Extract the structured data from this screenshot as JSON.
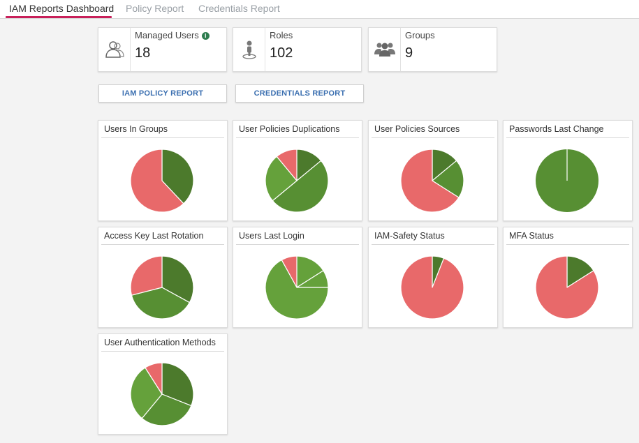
{
  "tabs": [
    {
      "label": "IAM Reports Dashboard",
      "active": true
    },
    {
      "label": "Policy Report",
      "active": false
    },
    {
      "label": "Credentials Report",
      "active": false
    }
  ],
  "stats": [
    {
      "label": "Managed Users",
      "value": "18",
      "icon": "users-outline-icon",
      "info_icon": "i"
    },
    {
      "label": "Roles",
      "value": "102",
      "icon": "role-person-icon"
    },
    {
      "label": "Groups",
      "value": "9",
      "icon": "group-icon"
    }
  ],
  "buttons": {
    "iam_policy_report": "IAM POLICY REPORT",
    "credentials_report": "CREDENTIALS REPORT"
  },
  "colors": {
    "red": "#e8696a",
    "dark_green": "#4c7a2c",
    "mid_green": "#578f33",
    "light_green": "#65a13b",
    "accent": "#c8205a",
    "link": "#3b6fb0"
  },
  "chart_data": [
    {
      "type": "pie",
      "title": "Users In Groups",
      "slices": [
        {
          "value": 38,
          "color": "#4c7a2c"
        },
        {
          "value": 62,
          "color": "#e8696a"
        }
      ]
    },
    {
      "type": "pie",
      "title": "User Policies Duplications",
      "slices": [
        {
          "value": 14,
          "color": "#4c7a2c"
        },
        {
          "value": 50,
          "color": "#578f33"
        },
        {
          "value": 25,
          "color": "#65a13b"
        },
        {
          "value": 11,
          "color": "#e8696a"
        }
      ]
    },
    {
      "type": "pie",
      "title": "User Policies Sources",
      "slices": [
        {
          "value": 14,
          "color": "#4c7a2c"
        },
        {
          "value": 20,
          "color": "#578f33"
        },
        {
          "value": 66,
          "color": "#e8696a"
        }
      ]
    },
    {
      "type": "pie",
      "title": "Passwords Last Change",
      "slices": [
        {
          "value": 100,
          "color": "#578f33"
        }
      ]
    },
    {
      "type": "pie",
      "title": "Access Key Last Rotation",
      "slices": [
        {
          "value": 33,
          "color": "#4c7a2c"
        },
        {
          "value": 38,
          "color": "#578f33"
        },
        {
          "value": 29,
          "color": "#e8696a"
        }
      ]
    },
    {
      "type": "pie",
      "title": "Users Last Login",
      "slices": [
        {
          "value": 16,
          "color": "#65a13b"
        },
        {
          "value": 9,
          "color": "#65a13b"
        },
        {
          "value": 67,
          "color": "#65a13b"
        },
        {
          "value": 8,
          "color": "#e8696a"
        }
      ]
    },
    {
      "type": "pie",
      "title": "IAM-Safety Status",
      "slices": [
        {
          "value": 6,
          "color": "#4c7a2c"
        },
        {
          "value": 94,
          "color": "#e8696a"
        }
      ]
    },
    {
      "type": "pie",
      "title": "MFA Status",
      "slices": [
        {
          "value": 16,
          "color": "#4c7a2c"
        },
        {
          "value": 84,
          "color": "#e8696a"
        }
      ]
    },
    {
      "type": "pie",
      "title": "User Authentication Methods",
      "slices": [
        {
          "value": 31,
          "color": "#4c7a2c"
        },
        {
          "value": 30,
          "color": "#578f33"
        },
        {
          "value": 30,
          "color": "#65a13b"
        },
        {
          "value": 9,
          "color": "#e8696a"
        }
      ]
    }
  ]
}
